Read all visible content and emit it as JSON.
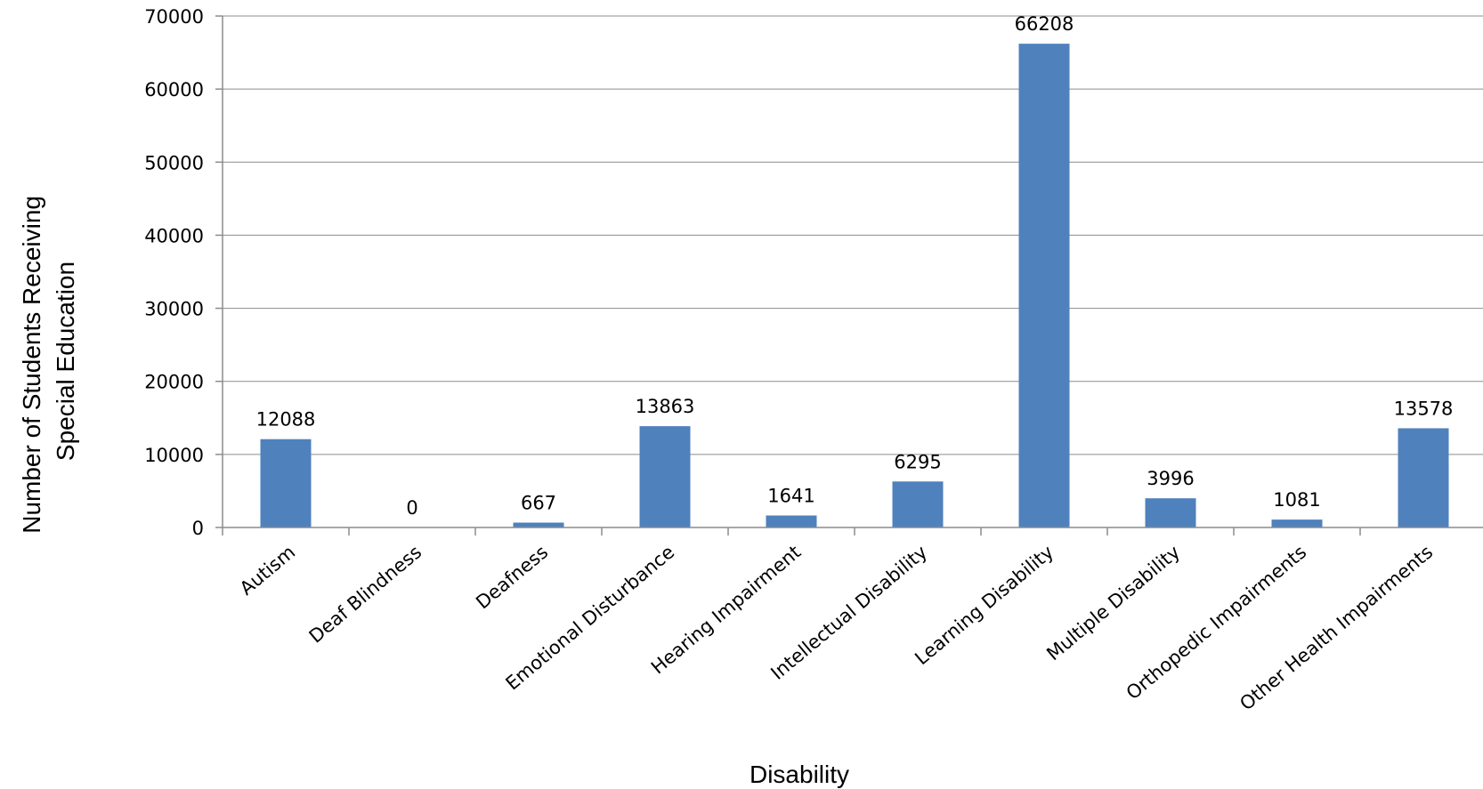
{
  "chart_data": {
    "type": "bar",
    "categories": [
      "Autism",
      "Deaf Blindness",
      "Deafness",
      "Emotional Disturbance",
      "Hearing Impairment",
      "Intellectual Disability",
      "Learning Disability",
      "Multiple Disability",
      "Orthopedic Impairments",
      "Other Health Impairments"
    ],
    "values": [
      12088,
      0,
      667,
      13863,
      1641,
      6295,
      66208,
      3996,
      1081,
      13578
    ],
    "data_labels": [
      "12088",
      "0",
      "667",
      "13863",
      "1641",
      "6295",
      "66208",
      "3996",
      "1081",
      "13578"
    ],
    "title": "",
    "xlabel": "Disability",
    "ylabel_lines": [
      "Number of Students Receiving",
      "Special Education"
    ],
    "ylim": [
      0,
      70000
    ],
    "yticks": [
      0,
      10000,
      20000,
      30000,
      40000,
      50000,
      60000,
      70000
    ],
    "ytick_labels": [
      "0",
      "10000",
      "20000",
      "30000",
      "40000",
      "50000",
      "60000",
      "70000"
    ],
    "grid": true,
    "legend": "none",
    "bar_color": "#4f81bd"
  }
}
